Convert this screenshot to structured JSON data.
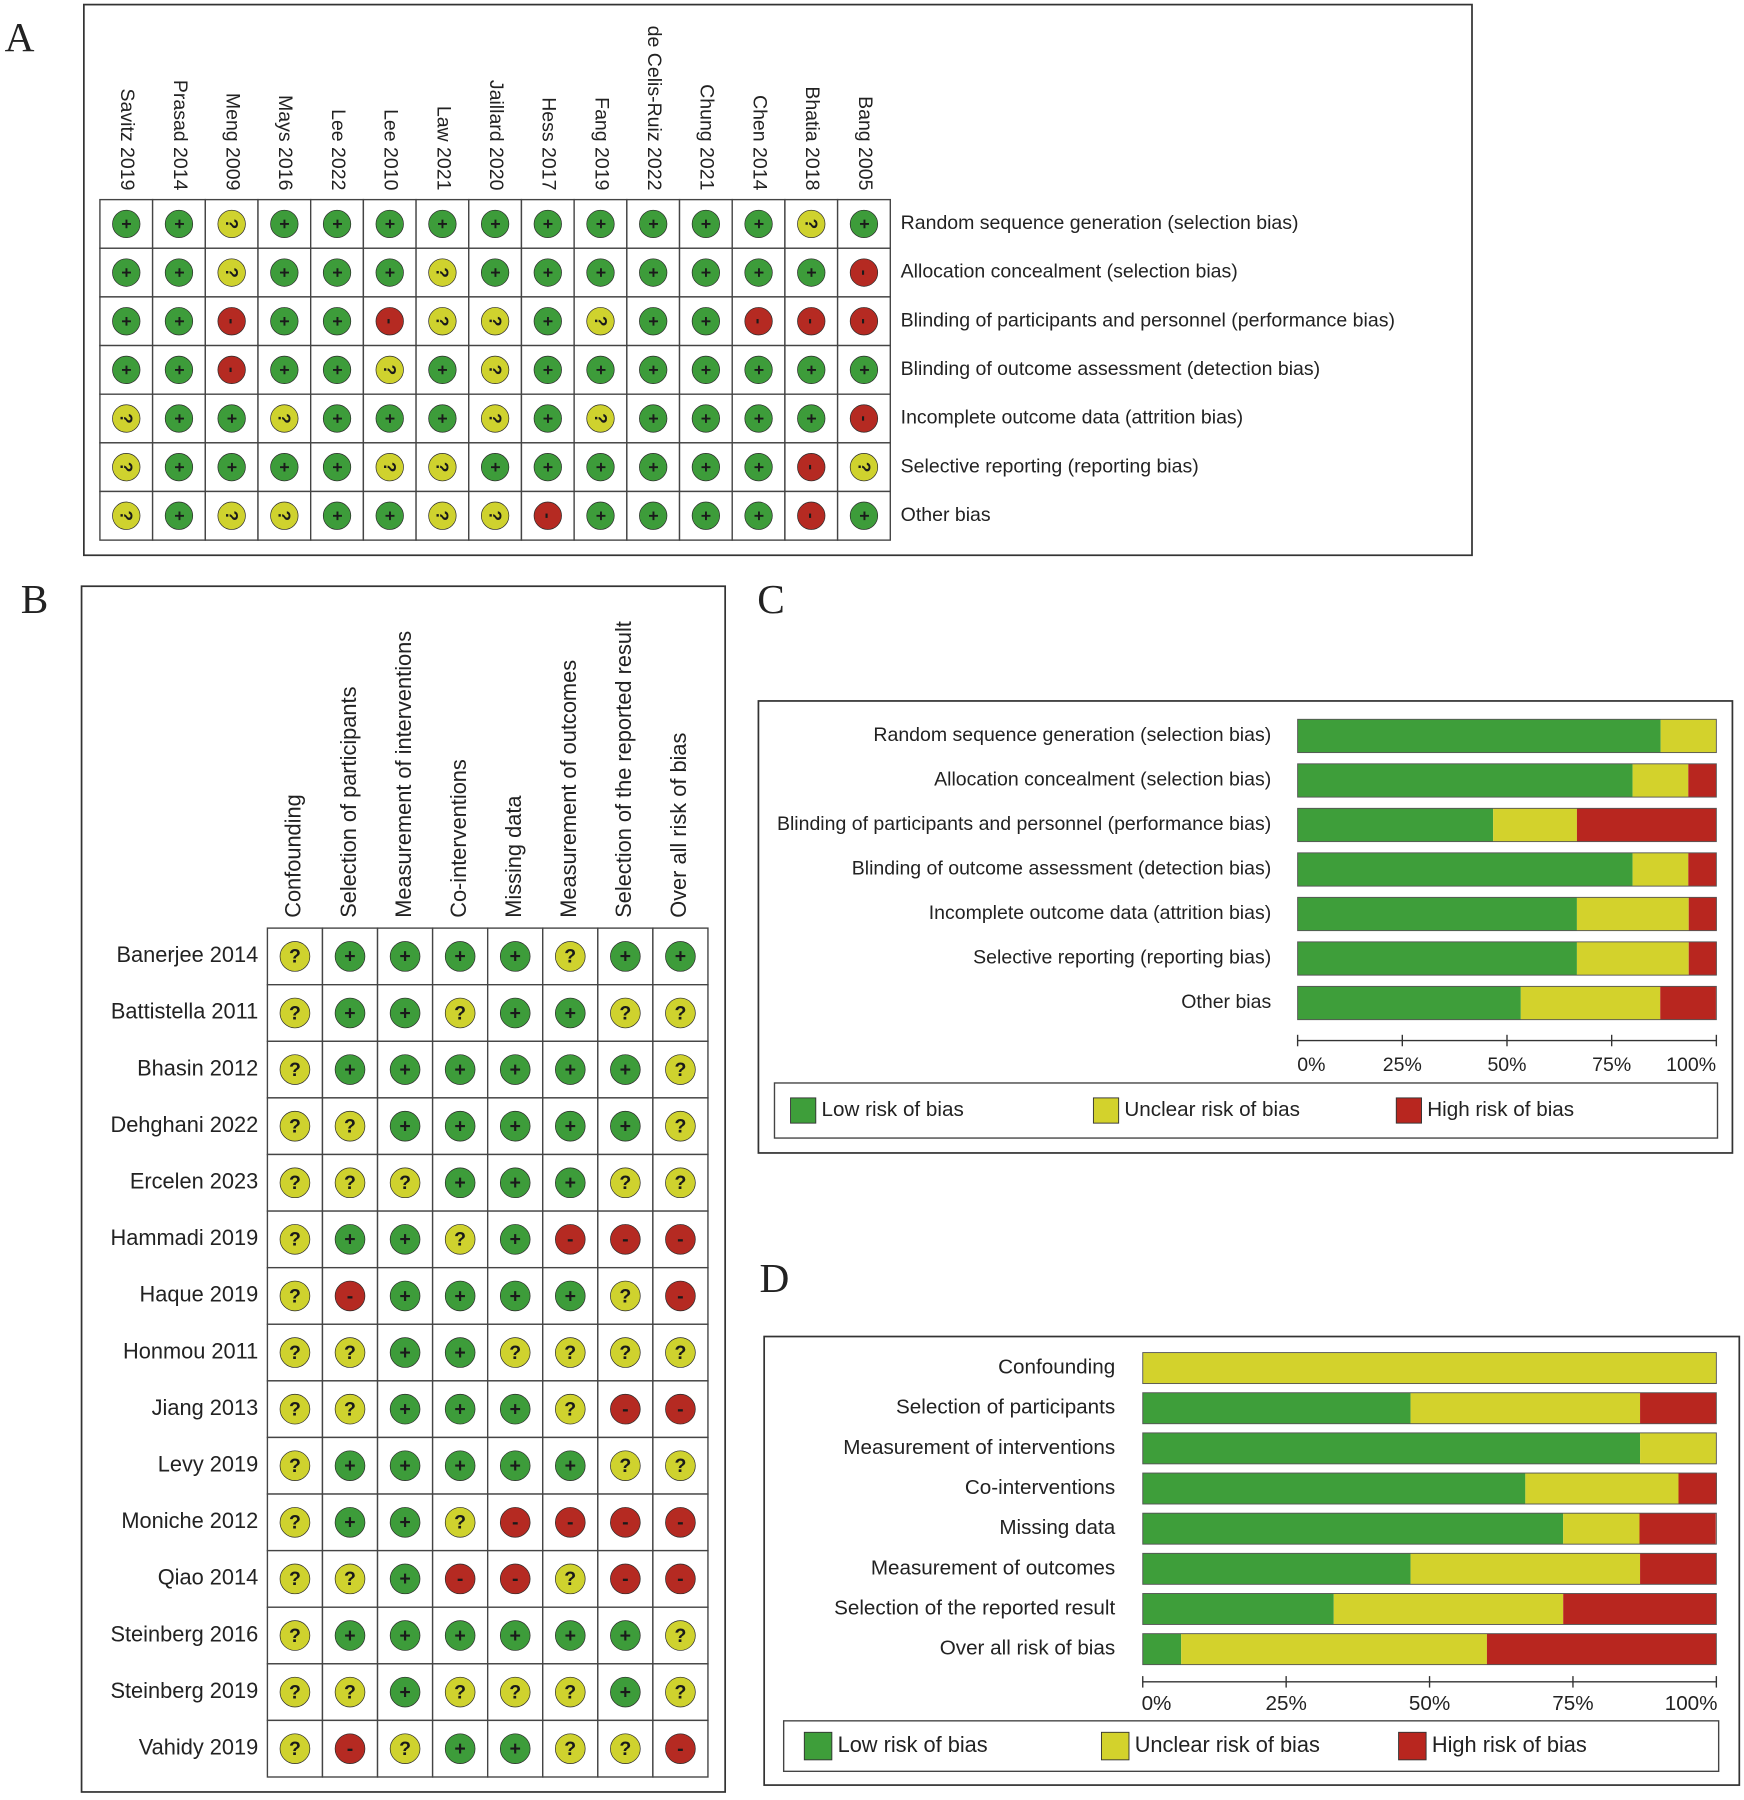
{
  "symbol_colors": [
    {
      "symbol": "+",
      "color": "#3d9c3a"
    },
    {
      "symbol": "?",
      "color": "#cfd22e"
    },
    {
      "symbol": "-",
      "color": "#b52a22"
    }
  ],
  "panel_a": {
    "panel_label": "A",
    "studies": [
      "Savitz 2019",
      "Prasad 2014",
      "Meng 2009",
      "Mays 2016",
      "Lee 2022",
      "Lee 2010",
      "Law 2021",
      "Jaillard 2020",
      "Hess 2017",
      "Fang 2019",
      "de Celis-Ruiz 2022",
      "Chung 2021",
      "Chen 2014",
      "Bhatia 2018",
      "Bang 2005"
    ],
    "domains": [
      "Random sequence generation (selection bias)",
      "Allocation concealment (selection bias)",
      "Blinding of participants and personnel (performance bias)",
      "Blinding of outcome assessment (detection bias)",
      "Incomplete outcome data (attrition bias)",
      "Selective reporting (reporting bias)",
      "Other bias"
    ],
    "judgments": [
      [
        "+",
        "+",
        "?",
        "+",
        "+",
        "+",
        "+",
        "+",
        "+",
        "+",
        "+",
        "+",
        "+",
        "?",
        "+"
      ],
      [
        "+",
        "+",
        "?",
        "+",
        "+",
        "+",
        "?",
        "+",
        "+",
        "+",
        "+",
        "+",
        "+",
        "+",
        "-"
      ],
      [
        "+",
        "+",
        "-",
        "+",
        "+",
        "-",
        "?",
        "?",
        "+",
        "?",
        "+",
        "+",
        "-",
        "-",
        "-"
      ],
      [
        "+",
        "+",
        "-",
        "+",
        "+",
        "?",
        "+",
        "?",
        "+",
        "+",
        "+",
        "+",
        "+",
        "+",
        "+"
      ],
      [
        "?",
        "+",
        "+",
        "?",
        "+",
        "+",
        "+",
        "?",
        "+",
        "?",
        "+",
        "+",
        "+",
        "+",
        "-"
      ],
      [
        "?",
        "+",
        "+",
        "+",
        "+",
        "?",
        "?",
        "+",
        "+",
        "+",
        "+",
        "+",
        "+",
        "-",
        "?"
      ],
      [
        "?",
        "+",
        "?",
        "?",
        "+",
        "+",
        "?",
        "?",
        "-",
        "+",
        "+",
        "+",
        "+",
        "-",
        "+"
      ]
    ]
  },
  "panel_b": {
    "panel_label": "B",
    "studies": [
      "Banerjee 2014",
      "Battistella 2011",
      "Bhasin 2012",
      "Dehghani 2022",
      "Ercelen 2023",
      "Hammadi 2019",
      "Haque 2019",
      "Honmou 2011",
      "Jiang 2013",
      "Levy 2019",
      "Moniche 2012",
      "Qiao 2014",
      "Steinberg 2016",
      "Steinberg 2019",
      "Vahidy 2019"
    ],
    "domains": [
      "Confounding",
      "Selection of participants",
      "Measurement of interventions",
      "Co-interventions",
      "Missing data",
      "Measurement of outcomes",
      "Selection of the reported result",
      "Over all risk of bias"
    ],
    "judgments": [
      [
        "?",
        "+",
        "+",
        "+",
        "+",
        "?",
        "+",
        "+"
      ],
      [
        "?",
        "+",
        "+",
        "?",
        "+",
        "+",
        "?",
        "?"
      ],
      [
        "?",
        "+",
        "+",
        "+",
        "+",
        "+",
        "+",
        "?"
      ],
      [
        "?",
        "?",
        "+",
        "+",
        "+",
        "+",
        "+",
        "?"
      ],
      [
        "?",
        "?",
        "?",
        "+",
        "+",
        "+",
        "?",
        "?"
      ],
      [
        "?",
        "+",
        "+",
        "?",
        "+",
        "-",
        "-",
        "-"
      ],
      [
        "?",
        "-",
        "+",
        "+",
        "+",
        "+",
        "?",
        "-"
      ],
      [
        "?",
        "?",
        "+",
        "+",
        "?",
        "?",
        "?",
        "?"
      ],
      [
        "?",
        "?",
        "+",
        "+",
        "+",
        "?",
        "-",
        "-"
      ],
      [
        "?",
        "+",
        "+",
        "+",
        "+",
        "+",
        "?",
        "?"
      ],
      [
        "?",
        "+",
        "+",
        "?",
        "-",
        "-",
        "-",
        "-"
      ],
      [
        "?",
        "?",
        "+",
        "-",
        "-",
        "?",
        "-",
        "-"
      ],
      [
        "?",
        "+",
        "+",
        "+",
        "+",
        "+",
        "+",
        "?"
      ],
      [
        "?",
        "?",
        "+",
        "?",
        "?",
        "?",
        "+",
        "?"
      ],
      [
        "?",
        "-",
        "?",
        "+",
        "+",
        "?",
        "?",
        "-"
      ]
    ]
  },
  "chart_data": [
    {
      "type": "bar",
      "panel_label": "C",
      "categories": [
        "Random sequence generation (selection bias)",
        "Allocation concealment (selection bias)",
        "Blinding of participants and personnel (performance bias)",
        "Blinding of outcome assessment (detection bias)",
        "Incomplete outcome data (attrition bias)",
        "Selective reporting (reporting bias)",
        "Other bias"
      ],
      "series": [
        {
          "name": "Low risk of bias",
          "color": "#3e9e3a",
          "values": [
            86.7,
            80,
            46.7,
            80,
            66.7,
            66.7,
            53.3
          ]
        },
        {
          "name": "Unclear risk of bias",
          "color": "#d3d22c",
          "values": [
            13.3,
            13.3,
            20,
            13.3,
            26.7,
            26.7,
            33.3
          ]
        },
        {
          "name": "High risk of bias",
          "color": "#b8261f",
          "values": [
            0,
            6.7,
            33.3,
            6.7,
            6.7,
            6.7,
            13.3
          ]
        }
      ],
      "xlim": [
        0,
        100
      ],
      "xticks": [
        {
          "value": 0,
          "label": "0%"
        },
        {
          "value": 25,
          "label": "25%"
        },
        {
          "value": 50,
          "label": "50%"
        },
        {
          "value": 75,
          "label": "75%"
        },
        {
          "value": 100,
          "label": "100%"
        }
      ]
    },
    {
      "type": "bar",
      "panel_label": "D",
      "categories": [
        "Confounding",
        "Selection of participants",
        "Measurement of interventions",
        "Co-interventions",
        "Missing data",
        "Measurement of outcomes",
        "Selection of the reported result",
        "Over all risk of bias"
      ],
      "series": [
        {
          "name": "Low risk of bias",
          "color": "#3e9e3a",
          "values": [
            0,
            46.7,
            86.7,
            66.7,
            73.3,
            46.7,
            33.3,
            6.7
          ]
        },
        {
          "name": "Unclear risk of bias",
          "color": "#d3d22c",
          "values": [
            100,
            40,
            13.3,
            26.7,
            13.3,
            40,
            40,
            53.3
          ]
        },
        {
          "name": "High risk of bias",
          "color": "#b8261f",
          "values": [
            0,
            13.3,
            0,
            6.7,
            13.3,
            13.3,
            26.7,
            40
          ]
        }
      ],
      "xlim": [
        0,
        100
      ],
      "xticks": [
        {
          "value": 0,
          "label": "0%"
        },
        {
          "value": 25,
          "label": "25%"
        },
        {
          "value": 50,
          "label": "50%"
        },
        {
          "value": 75,
          "label": "75%"
        },
        {
          "value": 100,
          "label": "100%"
        }
      ]
    }
  ]
}
